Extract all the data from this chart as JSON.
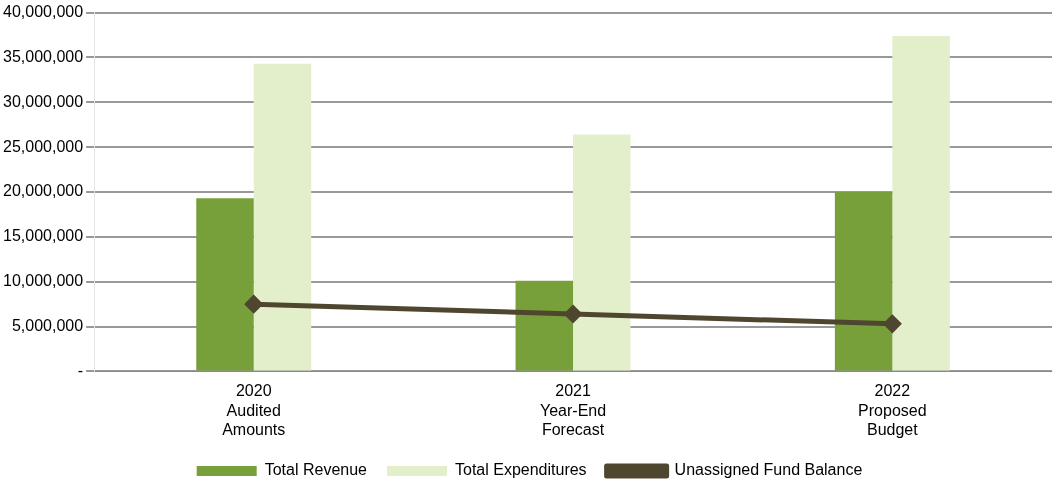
{
  "chart_data": {
    "type": "bar",
    "categories": [
      "2020\nAudited\nAmounts",
      "2021\nYear-End\nForecast",
      "2022\nProposed\nBudget"
    ],
    "series": [
      {
        "name": "Total Revenue",
        "color": "#77a03a",
        "values": [
          19300000,
          10100000,
          20000000
        ]
      },
      {
        "name": "Total Expenditures",
        "color": "#e2efca",
        "values": [
          34300000,
          26400000,
          37400000
        ]
      },
      {
        "name": "Unassigned Fund Balance",
        "type": "line",
        "color": "#4f4630",
        "marker": "diamond",
        "values": [
          7500000,
          6400000,
          5300000
        ]
      }
    ],
    "ylim": [
      0,
      40000000
    ],
    "yticks": [
      {
        "value": 0,
        "label": "-"
      },
      {
        "value": 5000000,
        "label": "5,000,000"
      },
      {
        "value": 10000000,
        "label": "10,000,000"
      },
      {
        "value": 15000000,
        "label": "15,000,000"
      },
      {
        "value": 20000000,
        "label": "20,000,000"
      },
      {
        "value": 25000000,
        "label": "25,000,000"
      },
      {
        "value": 30000000,
        "label": "30,000,000"
      },
      {
        "value": 35000000,
        "label": "35,000,000"
      },
      {
        "value": 40000000,
        "label": "40,000,000"
      }
    ],
    "grid": "y",
    "legend": "bottom"
  }
}
